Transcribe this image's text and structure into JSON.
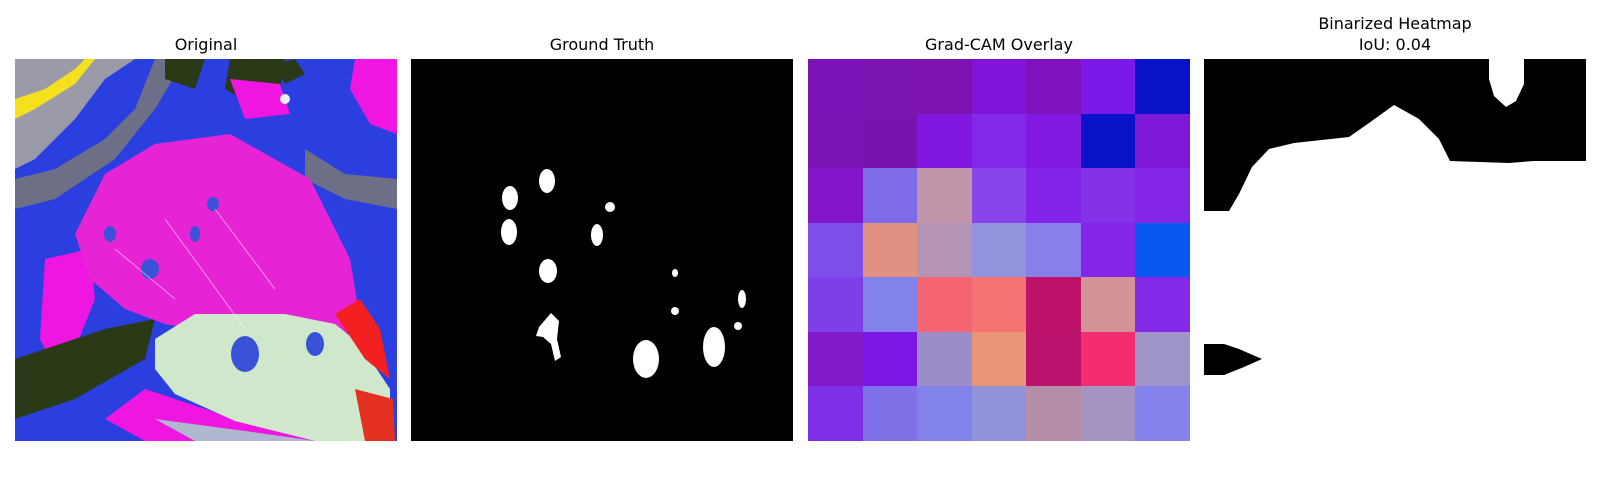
{
  "panels": {
    "original": {
      "title": "Original"
    },
    "ground_truth": {
      "title": "Ground Truth"
    },
    "gradcam": {
      "title": "Grad-CAM Overlay",
      "grid": [
        [
          "#7b13b6",
          "#7b13b0",
          "#7c13ae",
          "#8213d8",
          "#7f12bd",
          "#7b18ea",
          "#0813c9"
        ],
        [
          "#7b13b4",
          "#7a13ad",
          "#8217e0",
          "#8428e8",
          "#8318e0",
          "#0812c8",
          "#7c18d6"
        ],
        [
          "#8216c8",
          "#7e6be8",
          "#c194a9",
          "#8844e8",
          "#8322e8",
          "#8531e8",
          "#8326e8"
        ],
        [
          "#7e4ee8",
          "#e19181",
          "#b494b6",
          "#9293dc",
          "#8780ea",
          "#8426e8",
          "#0a58ef"
        ],
        [
          "#7e3ee8",
          "#8382e9",
          "#f56672",
          "#f57373",
          "#bd136b",
          "#d29499",
          "#8428e8"
        ],
        [
          "#8219c9",
          "#7c16e4",
          "#9a8dc8",
          "#ea9478",
          "#bb136d",
          "#f42c70",
          "#9e94c8"
        ],
        [
          "#7e2fe6",
          "#8171e9",
          "#8282eb",
          "#9292d8",
          "#b48ea9",
          "#a494c4",
          "#8582ec"
        ]
      ]
    },
    "binarized": {
      "title_line1": "Binarized Heatmap",
      "title_line2": "IoU: 0.04"
    }
  }
}
